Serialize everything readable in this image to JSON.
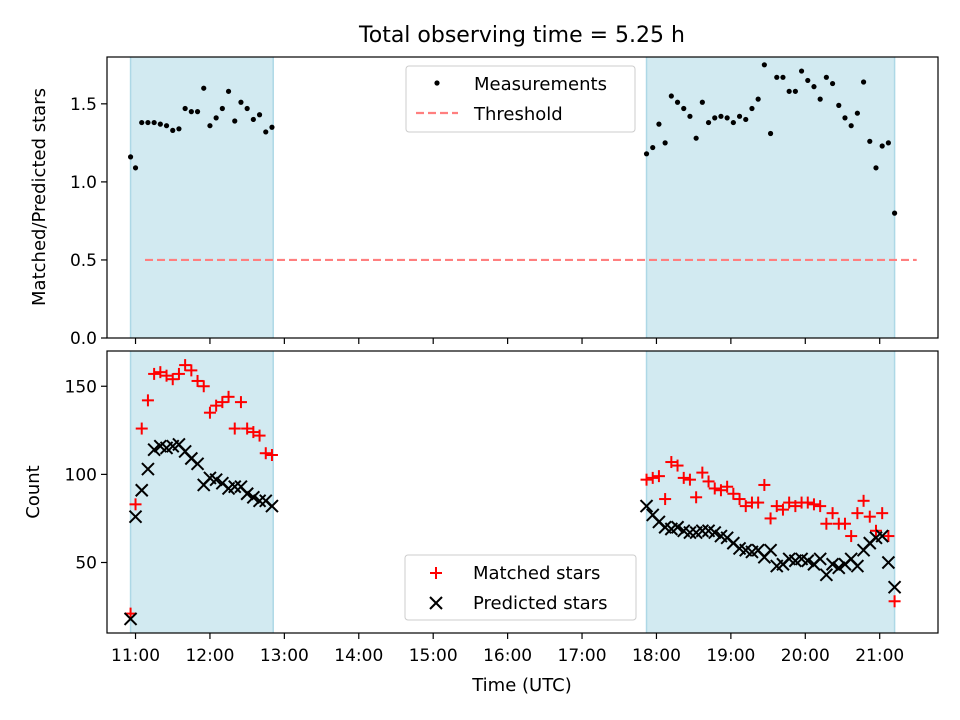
{
  "chart_data": {
    "title": "Total observing time = 5.25 h",
    "type": "scatter",
    "xlabel": "Time (UTC)",
    "x_ticks": [
      "11:00",
      "12:00",
      "13:00",
      "14:00",
      "15:00",
      "16:00",
      "17:00",
      "18:00",
      "19:00",
      "20:00",
      "21:00"
    ],
    "xlim": [
      "10:37",
      "21:47"
    ],
    "observing_windows": [
      {
        "start": "10:56",
        "end": "12:51"
      },
      {
        "start": "17:52",
        "end": "21:12"
      }
    ],
    "colors": {
      "window": "#add8e6",
      "matched": "#ff0000",
      "predicted": "#000000",
      "threshold": "#ff7f7f",
      "measurements": "#000000"
    },
    "panels": [
      {
        "ylabel": "Matched/Predicted stars",
        "ylim": [
          0,
          1.8
        ],
        "y_ticks": [
          "0.0",
          "0.5",
          "1.0",
          "1.5"
        ],
        "legend_position": "top-center",
        "legend": {
          "measurements": "Measurements",
          "threshold": "Threshold"
        },
        "threshold": 0.5,
        "series": [
          {
            "name": "Measurements",
            "marker": "dot",
            "x": [
              "10:56",
              "11:00",
              "11:05",
              "11:10",
              "11:15",
              "11:20",
              "11:25",
              "11:30",
              "11:35",
              "11:40",
              "11:45",
              "11:50",
              "11:55",
              "12:00",
              "12:05",
              "12:10",
              "12:15",
              "12:20",
              "12:25",
              "12:30",
              "12:35",
              "12:40",
              "12:45",
              "12:50",
              "17:52",
              "17:57",
              "18:02",
              "18:07",
              "18:12",
              "18:17",
              "18:22",
              "18:27",
              "18:32",
              "18:37",
              "18:42",
              "18:47",
              "18:52",
              "18:57",
              "19:02",
              "19:07",
              "19:12",
              "19:17",
              "19:22",
              "19:27",
              "19:32",
              "19:37",
              "19:42",
              "19:47",
              "19:52",
              "19:57",
              "20:02",
              "20:07",
              "20:12",
              "20:17",
              "20:22",
              "20:27",
              "20:32",
              "20:37",
              "20:42",
              "20:47",
              "20:52",
              "20:57",
              "21:02",
              "21:07",
              "21:12"
            ],
            "values": [
              1.16,
              1.09,
              1.38,
              1.38,
              1.38,
              1.37,
              1.36,
              1.33,
              1.34,
              1.47,
              1.45,
              1.45,
              1.6,
              1.36,
              1.41,
              1.47,
              1.58,
              1.39,
              1.51,
              1.47,
              1.4,
              1.43,
              1.32,
              1.35,
              1.18,
              1.22,
              1.37,
              1.25,
              1.55,
              1.51,
              1.47,
              1.42,
              1.28,
              1.51,
              1.38,
              1.41,
              1.42,
              1.41,
              1.38,
              1.42,
              1.4,
              1.47,
              1.53,
              1.75,
              1.31,
              1.67,
              1.67,
              1.58,
              1.58,
              1.71,
              1.65,
              1.61,
              1.53,
              1.67,
              1.63,
              1.49,
              1.41,
              1.36,
              1.44,
              1.64,
              1.26,
              1.09,
              1.23,
              1.25,
              0.8
            ]
          }
        ]
      },
      {
        "ylabel": "Count",
        "ylim": [
          10,
          170
        ],
        "y_ticks": [
          "50",
          "100",
          "150"
        ],
        "legend_position": "bottom-center",
        "series": [
          {
            "name": "Matched stars",
            "marker": "plus",
            "x": [
              "10:56",
              "11:00",
              "11:05",
              "11:10",
              "11:15",
              "11:20",
              "11:25",
              "11:30",
              "11:35",
              "11:40",
              "11:45",
              "11:50",
              "11:55",
              "12:00",
              "12:05",
              "12:10",
              "12:15",
              "12:20",
              "12:25",
              "12:30",
              "12:35",
              "12:40",
              "12:45",
              "12:50",
              "17:52",
              "17:57",
              "18:02",
              "18:07",
              "18:12",
              "18:17",
              "18:22",
              "18:27",
              "18:32",
              "18:37",
              "18:42",
              "18:47",
              "18:52",
              "18:57",
              "19:02",
              "19:07",
              "19:12",
              "19:17",
              "19:22",
              "19:27",
              "19:32",
              "19:37",
              "19:42",
              "19:47",
              "19:52",
              "19:57",
              "20:02",
              "20:07",
              "20:12",
              "20:17",
              "20:22",
              "20:27",
              "20:32",
              "20:37",
              "20:42",
              "20:47",
              "20:52",
              "20:57",
              "21:02",
              "21:07",
              "21:12"
            ],
            "values": [
              21,
              83,
              126,
              142,
              157,
              158,
              156,
              154,
              157,
              162,
              159,
              153,
              150,
              135,
              139,
              141,
              144,
              126,
              141,
              126,
              124,
              122,
              112,
              111,
              97,
              98,
              99,
              86,
              107,
              105,
              98,
              97,
              87,
              101,
              96,
              92,
              91,
              93,
              89,
              86,
              82,
              84,
              84,
              94,
              75,
              82,
              80,
              84,
              82,
              84,
              84,
              83,
              82,
              72,
              78,
              72,
              72,
              65,
              78,
              85,
              76,
              68,
              78,
              65,
              28
            ]
          },
          {
            "name": "Predicted stars",
            "marker": "x",
            "x": [
              "10:56",
              "11:00",
              "11:05",
              "11:10",
              "11:15",
              "11:20",
              "11:25",
              "11:30",
              "11:35",
              "11:40",
              "11:45",
              "11:50",
              "11:55",
              "12:00",
              "12:05",
              "12:10",
              "12:15",
              "12:20",
              "12:25",
              "12:30",
              "12:35",
              "12:40",
              "12:45",
              "12:50",
              "17:52",
              "17:57",
              "18:02",
              "18:07",
              "18:12",
              "18:17",
              "18:22",
              "18:27",
              "18:32",
              "18:37",
              "18:42",
              "18:47",
              "18:52",
              "18:57",
              "19:02",
              "19:07",
              "19:12",
              "19:17",
              "19:22",
              "19:27",
              "19:32",
              "19:37",
              "19:42",
              "19:47",
              "19:52",
              "19:57",
              "20:02",
              "20:07",
              "20:12",
              "20:17",
              "20:22",
              "20:27",
              "20:32",
              "20:37",
              "20:42",
              "20:47",
              "20:52",
              "20:57",
              "21:02",
              "21:07",
              "21:12"
            ],
            "values": [
              18,
              76,
              91,
              103,
              114,
              116,
              115,
              116,
              117,
              113,
              109,
              106,
              94,
              98,
              97,
              95,
              92,
              93,
              93,
              89,
              87,
              85,
              85,
              82,
              82,
              77,
              73,
              70,
              69,
              70,
              68,
              67,
              67,
              68,
              68,
              67,
              65,
              64,
              61,
              58,
              57,
              56,
              57,
              53,
              57,
              48,
              49,
              52,
              51,
              52,
              51,
              49,
              52,
              43,
              49,
              47,
              49,
              52,
              48,
              57,
              61,
              64,
              65,
              50,
              36
            ]
          }
        ]
      }
    ]
  }
}
